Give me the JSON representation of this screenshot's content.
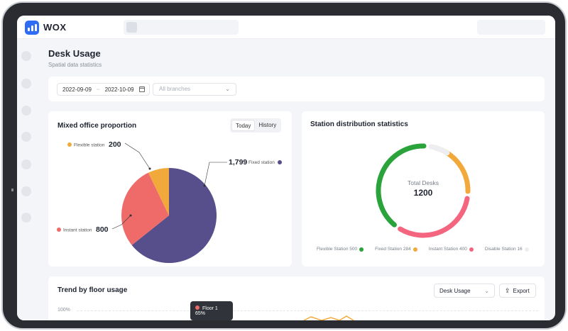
{
  "app": {
    "brand": "WOX"
  },
  "page": {
    "title": "Desk Usage",
    "subtitle": "Spatial data statistics"
  },
  "filters": {
    "date_start": "2022-09-09",
    "date_sep": "~",
    "date_end": "2022-10-09",
    "branch_placeholder": "All branches"
  },
  "mixed_office": {
    "title": "Mixed office proportion",
    "tabs": [
      "Today",
      "History"
    ],
    "active_tab": "Today",
    "segments": [
      {
        "label": "Flexible station",
        "value_text": "200",
        "value": 200,
        "color": "#f2a93b"
      },
      {
        "label": "Fixed station",
        "value_text": "1,799",
        "value": 1799,
        "color": "#574f8b"
      },
      {
        "label": "Instant station",
        "value_text": "800",
        "value": 800,
        "color": "#ee6b6a"
      }
    ]
  },
  "station_dist": {
    "title": "Station distribution statistics",
    "center_label": "Total Desks",
    "center_value": "1200",
    "legend": [
      {
        "label": "Flexible Station 500",
        "color": "#2aa33b"
      },
      {
        "label": "Fixed Station 284",
        "color": "#f2a93b"
      },
      {
        "label": "Instant Station 400",
        "color": "#f4667f"
      },
      {
        "label": "Disable Station 16",
        "color": "#eceef2"
      }
    ]
  },
  "trend": {
    "title": "Trend by floor usage",
    "metric_select": "Desk Usage",
    "export_label": "Export",
    "y_tick_top": "100%",
    "tooltip": "Floor 1 65%",
    "tooltip_color": "#ee6b6a"
  },
  "chart_data": [
    {
      "type": "pie",
      "title": "Mixed office proportion",
      "categories": [
        "Flexible station",
        "Fixed station",
        "Instant station"
      ],
      "values": [
        200,
        1799,
        800
      ]
    },
    {
      "type": "pie",
      "title": "Station distribution statistics",
      "categories": [
        "Flexible Station",
        "Fixed Station",
        "Instant Station",
        "Disable Station"
      ],
      "values": [
        500,
        284,
        400,
        16
      ]
    }
  ]
}
